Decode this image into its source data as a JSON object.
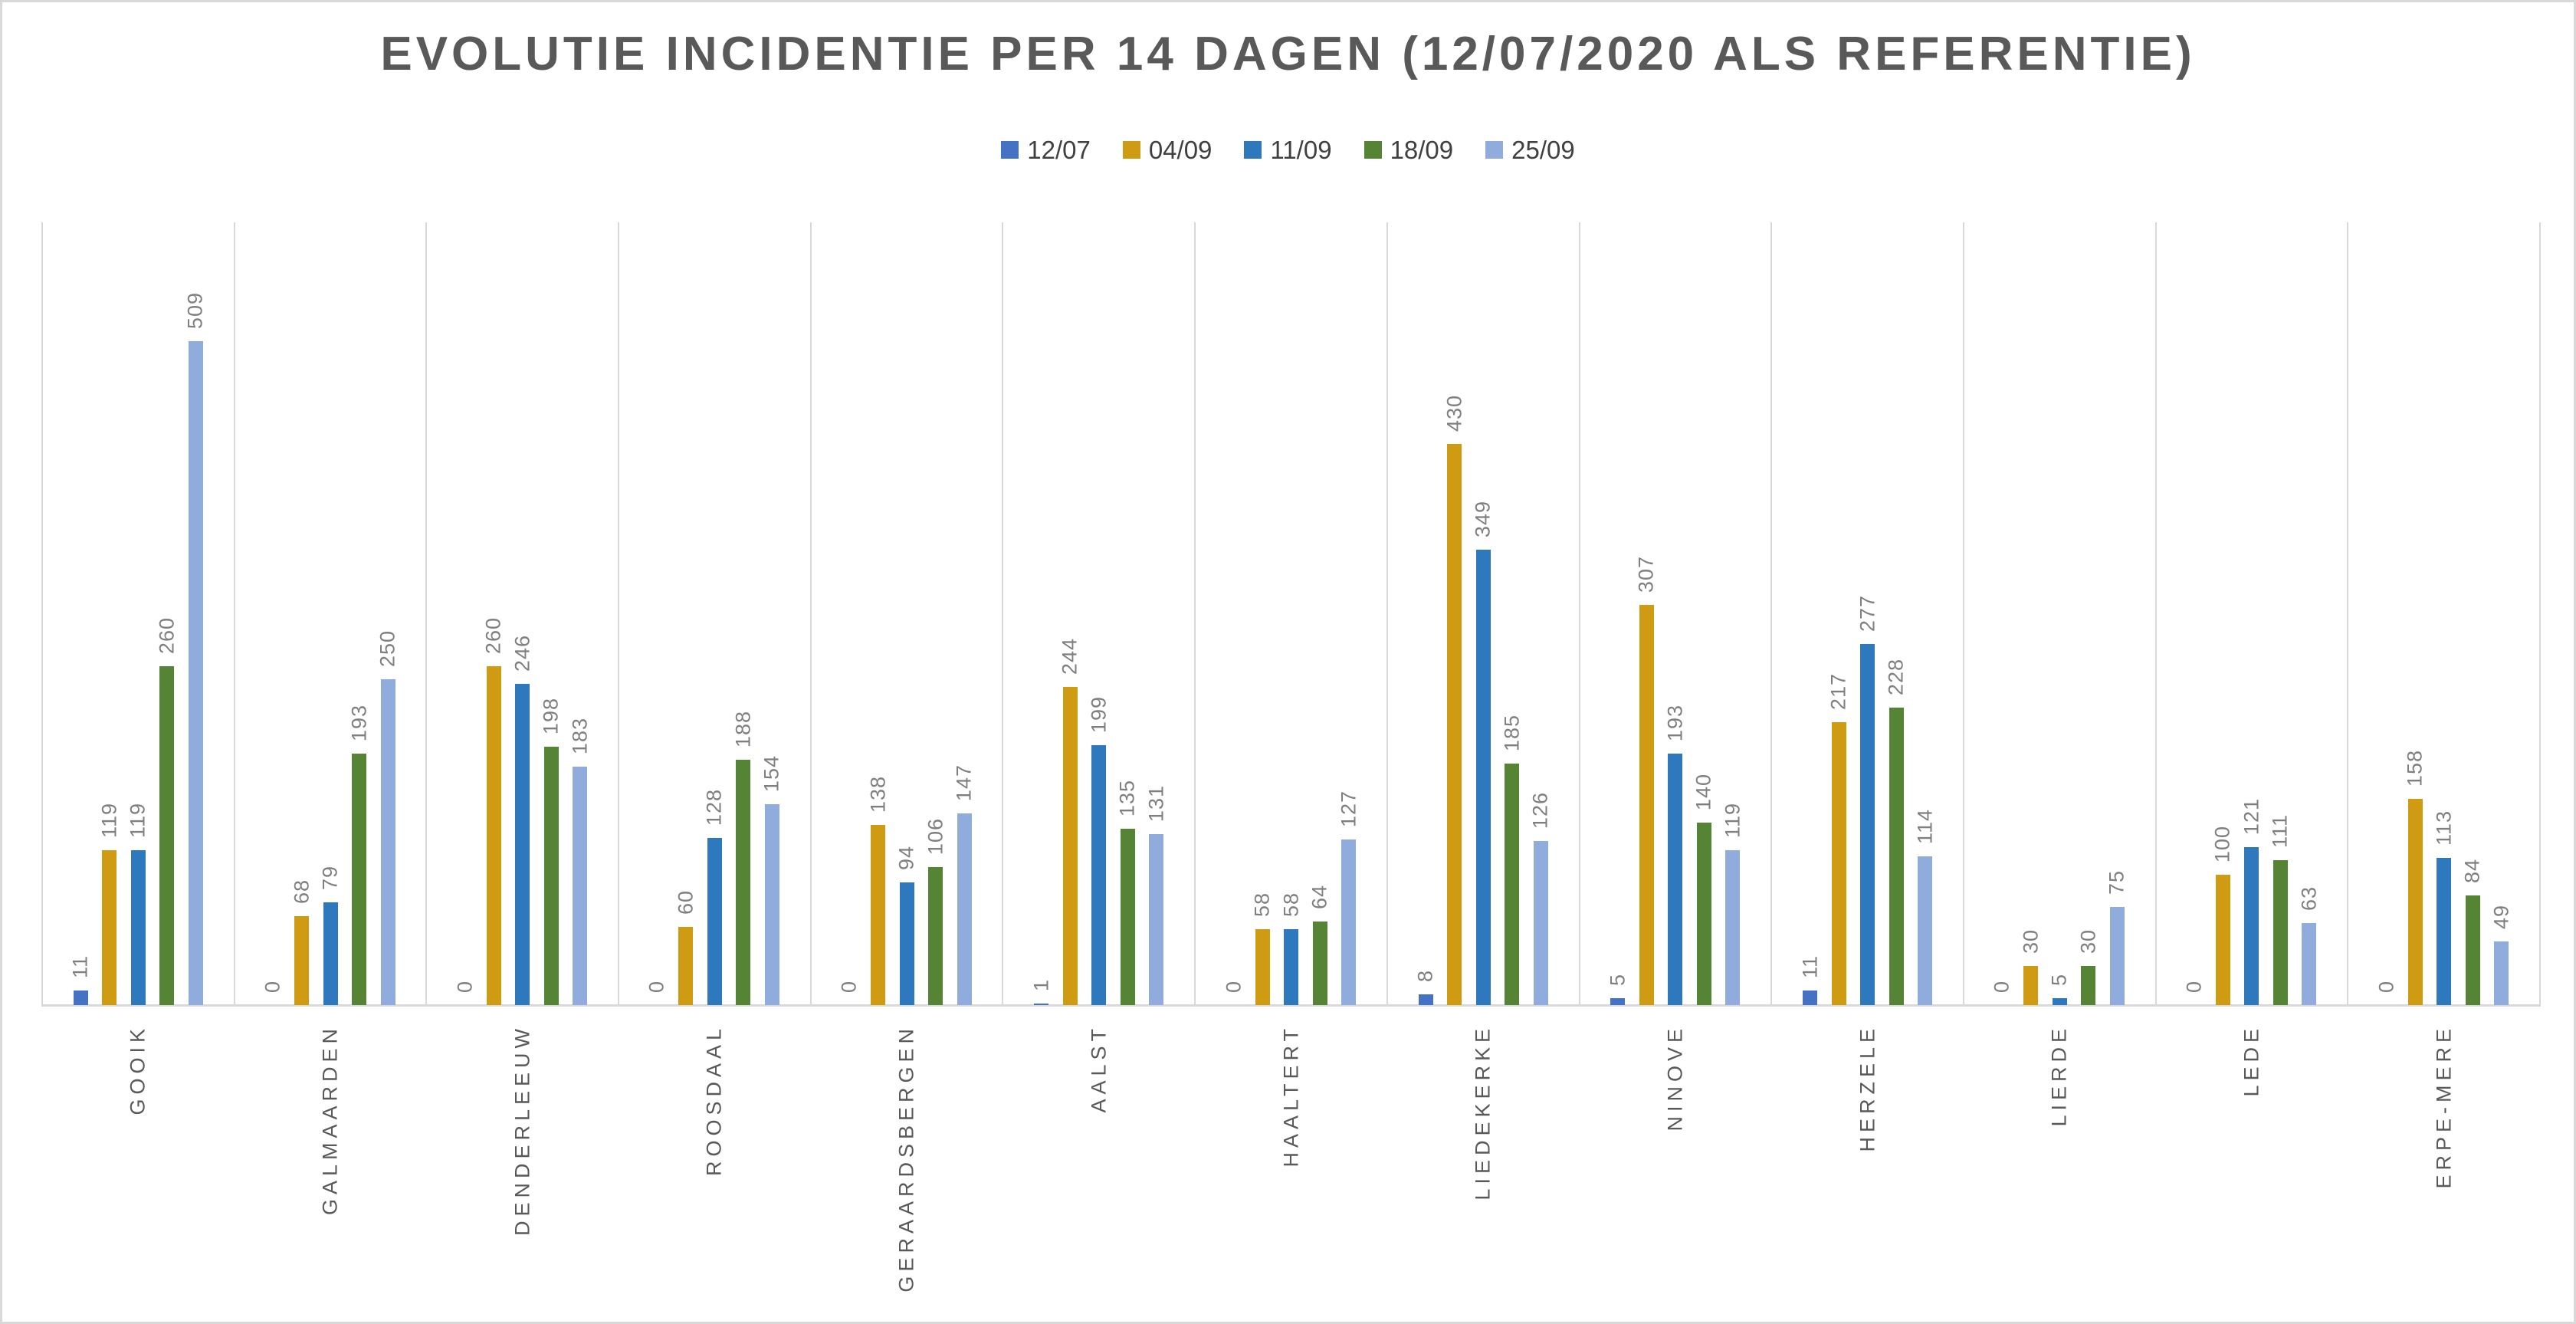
{
  "title": "EVOLUTIE INCIDENTIE PER 14 DAGEN (12/07/2020 ALS REFERENTIE)",
  "legend": {
    "items": [
      {
        "label": "12/07",
        "color": "#4472C4"
      },
      {
        "label": "04/09",
        "color": "#CF9B13"
      },
      {
        "label": "11/09",
        "color": "#2E78BE"
      },
      {
        "label": "18/09",
        "color": "#568435"
      },
      {
        "label": "25/09",
        "color": "#90ACDC"
      }
    ]
  },
  "chart_data": {
    "type": "bar",
    "title": "EVOLUTIE INCIDENTIE PER 14 DAGEN (12/07/2020 ALS REFERENTIE)",
    "categories": [
      "GOOIK",
      "GALMAARDEN",
      "DENDERLEEUW",
      "ROOSDAAL",
      "GERAARDSBERGEN",
      "AALST",
      "HAALTERT",
      "LIEDEKERKE",
      "NINOVE",
      "HERZELE",
      "LIERDE",
      "LEDE",
      "ERPE-MERE"
    ],
    "series": [
      {
        "name": "12/07",
        "color": "#4472C4",
        "values": [
          11,
          0,
          0,
          0,
          0,
          1,
          0,
          8,
          5,
          11,
          0,
          0,
          0
        ]
      },
      {
        "name": "04/09",
        "color": "#CF9B13",
        "values": [
          119,
          68,
          260,
          60,
          138,
          244,
          58,
          430,
          307,
          217,
          30,
          100,
          158
        ]
      },
      {
        "name": "11/09",
        "color": "#2E78BE",
        "values": [
          119,
          79,
          246,
          128,
          94,
          199,
          58,
          349,
          193,
          277,
          5,
          121,
          113
        ]
      },
      {
        "name": "18/09",
        "color": "#568435",
        "values": [
          260,
          193,
          198,
          188,
          106,
          135,
          64,
          185,
          140,
          228,
          30,
          111,
          84
        ]
      },
      {
        "name": "25/09",
        "color": "#90ACDC",
        "values": [
          509,
          250,
          183,
          154,
          147,
          131,
          127,
          126,
          119,
          114,
          75,
          63,
          49
        ]
      }
    ],
    "xlabel": "",
    "ylabel": "",
    "ylim": [
      0,
      600
    ],
    "value_labels": true,
    "value_label_rotation_deg": 90,
    "category_label_rotation_deg": 90,
    "legend_position": "top",
    "gridlines": "vertical-category-separators",
    "gridline_color": "#D9D9D9",
    "axis_line_color": "#D9D9D9",
    "value_label_color": "#7F7F7F",
    "category_label_color": "#595959",
    "title_color": "#595959",
    "background": "#FFFFFF"
  }
}
